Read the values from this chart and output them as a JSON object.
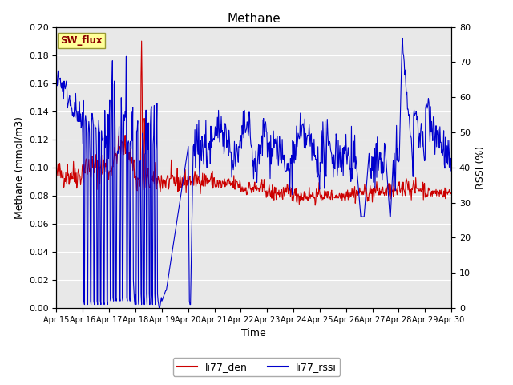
{
  "title": "Methane",
  "xlabel": "Time",
  "ylabel_left": "Methane (mmol/m3)",
  "ylabel_right": "RSSI (%)",
  "ylim_left": [
    0,
    0.2
  ],
  "ylim_right": [
    0,
    80
  ],
  "yticks_left": [
    0.0,
    0.02,
    0.04,
    0.06,
    0.08,
    0.1,
    0.12,
    0.14,
    0.16,
    0.18,
    0.2
  ],
  "yticks_right": [
    0,
    10,
    20,
    30,
    40,
    50,
    60,
    70,
    80
  ],
  "xtick_labels": [
    "Apr 15",
    "Apr 16",
    "Apr 17",
    "Apr 18",
    "Apr 19",
    "Apr 20",
    "Apr 21",
    "Apr 22",
    "Apr 23",
    "Apr 24",
    "Apr 25",
    "Apr 26",
    "Apr 27",
    "Apr 28",
    "Apr 29",
    "Apr 30"
  ],
  "bg_color": "#e8e8e8",
  "fig_bg": "#ffffff",
  "line_red_color": "#cc0000",
  "line_blue_color": "#0000cc",
  "legend_red": "li77_den",
  "legend_blue": "li77_rssi",
  "sw_flux_label": "SW_flux",
  "sw_flux_bg": "#ffff99",
  "sw_flux_border": "#999933"
}
